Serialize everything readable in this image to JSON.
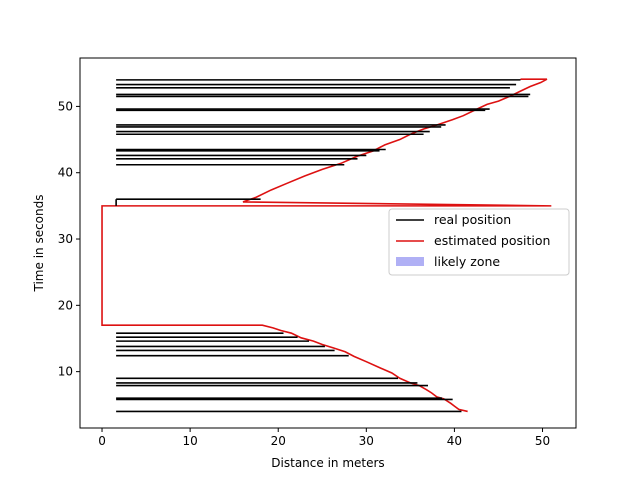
{
  "chart_data": {
    "type": "line",
    "title": "",
    "xlabel": "Distance in meters",
    "ylabel": "Time in seconds",
    "xlim": [
      -2.5,
      53.8
    ],
    "ylim": [
      1.5,
      57.3
    ],
    "xticks": [
      0,
      10,
      20,
      30,
      40,
      50
    ],
    "yticks": [
      10,
      20,
      30,
      40,
      50
    ],
    "grid": false,
    "legend": {
      "position": "center-right",
      "entries": [
        {
          "label": "real position",
          "color": "#000000",
          "kind": "line"
        },
        {
          "label": "estimated position",
          "color": "#dd1111",
          "kind": "line"
        },
        {
          "label": "likely zone",
          "color": "#b0b0f5",
          "kind": "patch"
        }
      ]
    },
    "series": [
      {
        "name": "real position",
        "color": "#000000",
        "sweeps": [
          [
            4.0,
            40.8
          ],
          [
            5.8,
            39.8
          ],
          [
            6.0,
            38.6
          ],
          [
            7.9,
            37.0
          ],
          [
            8.3,
            35.8
          ],
          [
            9.0,
            33.6
          ],
          [
            12.4,
            28.0
          ],
          [
            13.2,
            26.4
          ],
          [
            13.8,
            25.3
          ],
          [
            14.6,
            23.5
          ],
          [
            15.2,
            22.2
          ],
          [
            15.8,
            20.6
          ],
          [
            36.0,
            18.0
          ],
          [
            41.2,
            27.5
          ],
          [
            42.1,
            29.0
          ],
          [
            42.6,
            30.0
          ],
          [
            43.3,
            31.5
          ],
          [
            43.5,
            32.2
          ],
          [
            45.8,
            36.5
          ],
          [
            46.2,
            37.2
          ],
          [
            46.9,
            38.5
          ],
          [
            47.2,
            39.0
          ],
          [
            49.4,
            43.5
          ],
          [
            49.6,
            44.0
          ],
          [
            51.5,
            48.4
          ],
          [
            51.8,
            48.6
          ],
          [
            52.8,
            46.3
          ],
          [
            53.3,
            47.0
          ],
          [
            54.0,
            47.5
          ]
        ]
      },
      {
        "name": "estimated position",
        "color": "#dd1111",
        "points": [
          [
            41.5,
            4.0
          ],
          [
            40.5,
            4.3
          ],
          [
            40.0,
            4.8
          ],
          [
            39.6,
            5.2
          ],
          [
            38.8,
            5.9
          ],
          [
            38.0,
            6.2
          ],
          [
            37.4,
            6.8
          ],
          [
            36.8,
            7.3
          ],
          [
            36.0,
            7.9
          ],
          [
            35.0,
            8.3
          ],
          [
            33.8,
            9.0
          ],
          [
            32.9,
            9.8
          ],
          [
            31.5,
            10.6
          ],
          [
            30.0,
            11.5
          ],
          [
            28.6,
            12.3
          ],
          [
            27.6,
            13.0
          ],
          [
            26.2,
            13.6
          ],
          [
            25.0,
            14.1
          ],
          [
            24.0,
            14.6
          ],
          [
            22.6,
            15.1
          ],
          [
            21.5,
            15.8
          ],
          [
            20.3,
            16.2
          ],
          [
            19.4,
            16.6
          ],
          [
            18.2,
            17.0
          ],
          [
            0.0,
            17.0
          ],
          [
            0.0,
            35.0
          ],
          [
            51.0,
            35.0
          ],
          [
            16.0,
            35.6
          ],
          [
            17.5,
            36.3
          ],
          [
            19.2,
            37.4
          ],
          [
            21.0,
            38.4
          ],
          [
            23.0,
            39.5
          ],
          [
            25.0,
            40.5
          ],
          [
            27.1,
            41.4
          ],
          [
            29.0,
            42.5
          ],
          [
            30.8,
            43.3
          ],
          [
            32.1,
            44.2
          ],
          [
            33.8,
            45.0
          ],
          [
            35.0,
            45.8
          ],
          [
            36.5,
            46.6
          ],
          [
            38.0,
            47.2
          ],
          [
            39.8,
            48.0
          ],
          [
            41.0,
            48.6
          ],
          [
            42.4,
            49.5
          ],
          [
            43.7,
            50.3
          ],
          [
            45.0,
            50.8
          ],
          [
            46.4,
            51.6
          ],
          [
            47.5,
            52.3
          ],
          [
            48.6,
            53.0
          ],
          [
            49.8,
            53.6
          ],
          [
            50.5,
            54.1
          ],
          [
            47.5,
            54.1
          ]
        ]
      }
    ]
  }
}
